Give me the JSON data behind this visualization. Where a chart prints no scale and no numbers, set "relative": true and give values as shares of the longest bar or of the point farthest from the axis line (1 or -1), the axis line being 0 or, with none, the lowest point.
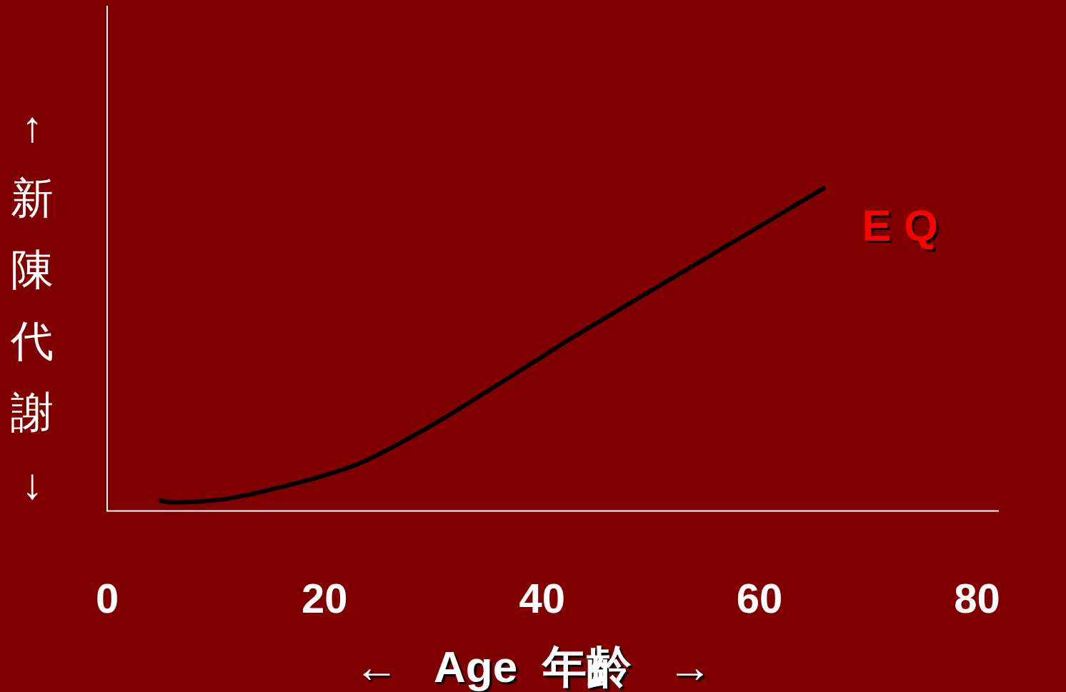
{
  "chart_data": {
    "type": "line",
    "relative": true,
    "xlabel": "←   Age  年齡   →",
    "ylabel": "↑  新陳代謝  ↓",
    "xlim": [
      0,
      82
    ],
    "xticks": [
      0,
      20,
      40,
      60,
      80
    ],
    "grid": false,
    "legend": false,
    "marker": "none",
    "line_style": "solid",
    "annotations": [
      "E Q"
    ],
    "series": [
      {
        "color": "#000000",
        "x": [
          4.9,
          6.2,
          8.0,
          10.5,
          13.0,
          16.7,
          19.8,
          23.8,
          44.9,
          65.9
        ],
        "values": [
          0.032,
          0.026,
          0.028,
          0.035,
          0.05,
          0.08,
          0.108,
          0.156,
          0.58,
          1
        ]
      }
    ]
  }
}
